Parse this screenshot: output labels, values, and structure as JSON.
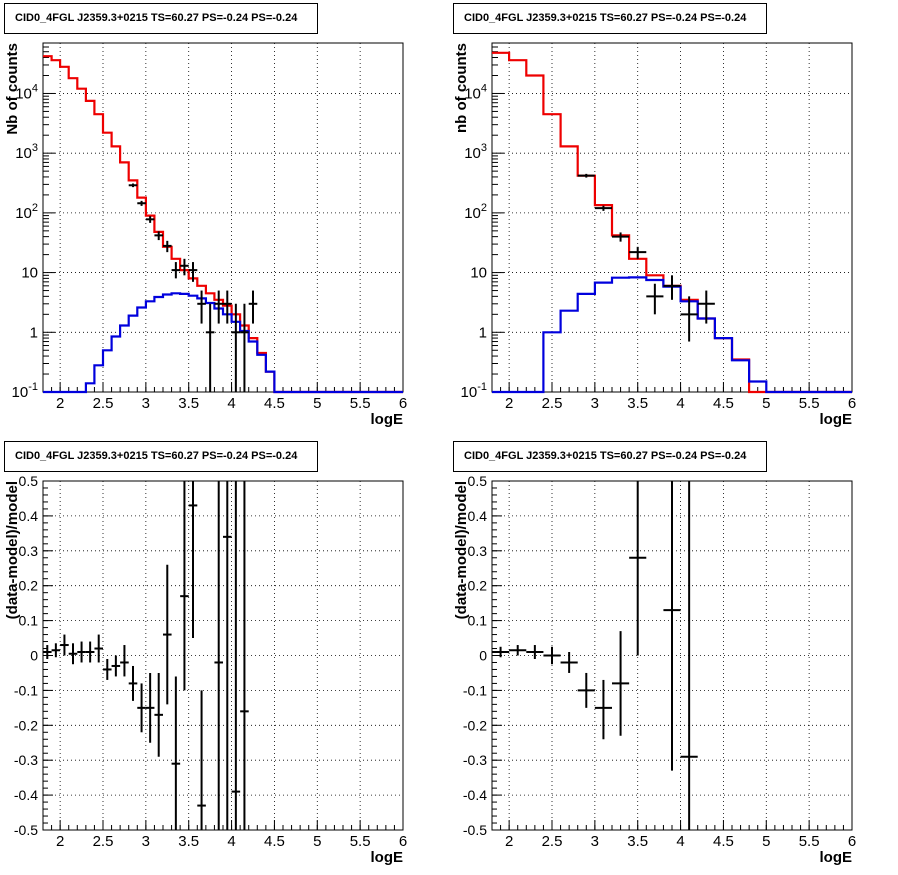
{
  "chart_data": [
    {
      "type": "histogram",
      "title": "CID0_4FGL J2359.3+0215 TS=60.27 PS=-0.24 PS=-0.24",
      "xlabel": "logE",
      "ylabel": "Nb of counts",
      "yscale": "log",
      "xlim": [
        1.8,
        6
      ],
      "ylim": [
        0.1,
        70000
      ],
      "grid": true,
      "x_ticks": [
        "2",
        "2.5",
        "3",
        "3.5",
        "4",
        "4.5",
        "5",
        "5.5",
        "6"
      ],
      "y_ticks": [
        "10^-1",
        "1",
        "10",
        "10^2",
        "10^3",
        "10^4"
      ],
      "bin_edges": [
        1.8,
        1.9,
        2.0,
        2.1,
        2.2,
        2.3,
        2.4,
        2.5,
        2.6,
        2.7,
        2.8,
        2.9,
        3.0,
        3.1,
        3.2,
        3.3,
        3.4,
        3.5,
        3.6,
        3.7,
        3.8,
        3.9,
        4.0,
        4.1,
        4.2,
        4.3,
        4.4,
        4.5,
        4.6,
        4.7,
        4.8,
        4.9,
        5.0,
        5.1,
        5.2,
        5.3,
        5.4,
        5.5,
        5.6,
        5.7,
        5.8,
        5.9,
        6.0
      ],
      "series": [
        {
          "color": "#ee0000",
          "style": "step",
          "values": [
            42000,
            36000,
            28000,
            18000,
            12000,
            7500,
            4500,
            2200,
            1300,
            700,
            350,
            180,
            90,
            48,
            27,
            17,
            11,
            8,
            6,
            4.5,
            3.5,
            2.8,
            2,
            1.3,
            0.8,
            0.45,
            0.22,
            0.1,
            0.1,
            0.1,
            0.1,
            0.1,
            0.1,
            0.1,
            0.1,
            0.1,
            0.1,
            0.1,
            0.1,
            0.1,
            0.1,
            0.1
          ]
        },
        {
          "color": "#0000dd",
          "style": "step",
          "values": [
            0.1,
            0.1,
            0.1,
            0.1,
            0.1,
            0.14,
            0.28,
            0.5,
            0.85,
            1.3,
            1.9,
            2.6,
            3.3,
            3.9,
            4.3,
            4.5,
            4.4,
            4.1,
            3.7,
            3.1,
            2.5,
            2,
            1.5,
            1.05,
            0.7,
            0.42,
            0.22,
            0.1,
            0.1,
            0.1,
            0.1,
            0.1,
            0.1,
            0.1,
            0.1,
            0.1,
            0.1,
            0.1,
            0.1,
            0.1,
            0.1,
            0.1
          ]
        }
      ],
      "data_points": [
        {
          "x": 2.85,
          "y": 290,
          "xerr": 0.05,
          "ylo": 270,
          "yhi": 310
        },
        {
          "x": 2.95,
          "y": 145,
          "xerr": 0.05,
          "ylo": 131,
          "yhi": 159
        },
        {
          "x": 3.05,
          "y": 78,
          "xerr": 0.05,
          "ylo": 68,
          "yhi": 88
        },
        {
          "x": 3.15,
          "y": 42,
          "xerr": 0.05,
          "ylo": 35,
          "yhi": 49
        },
        {
          "x": 3.25,
          "y": 28,
          "xerr": 0.05,
          "ylo": 22,
          "yhi": 34
        },
        {
          "x": 3.35,
          "y": 11,
          "xerr": 0.05,
          "ylo": 8,
          "yhi": 15
        },
        {
          "x": 3.45,
          "y": 13,
          "xerr": 0.05,
          "ylo": 9,
          "yhi": 17
        },
        {
          "x": 3.55,
          "y": 11,
          "xerr": 0.05,
          "ylo": 7,
          "yhi": 15
        },
        {
          "x": 3.65,
          "y": 3,
          "xerr": 0.05,
          "ylo": 1.4,
          "yhi": 5
        },
        {
          "x": 3.75,
          "y": 1,
          "xerr": 0.05,
          "ylo": 0.1,
          "yhi": 3
        },
        {
          "x": 3.85,
          "y": 3,
          "xerr": 0.05,
          "ylo": 1.4,
          "yhi": 5
        },
        {
          "x": 3.95,
          "y": 3,
          "xerr": 0.05,
          "ylo": 1.4,
          "yhi": 5
        },
        {
          "x": 4.05,
          "y": 1,
          "xerr": 0.05,
          "ylo": 0.1,
          "yhi": 3
        },
        {
          "x": 4.15,
          "y": 1,
          "xerr": 0.05,
          "ylo": 0.1,
          "yhi": 3
        },
        {
          "x": 4.25,
          "y": 3,
          "xerr": 0.05,
          "ylo": 1.4,
          "yhi": 5
        }
      ]
    },
    {
      "type": "histogram",
      "title": "CID0_4FGL J2359.3+0215 TS=60.27 PS=-0.24 PS=-0.24",
      "xlabel": "logE",
      "ylabel": "nb of counts",
      "yscale": "log",
      "xlim": [
        1.8,
        6
      ],
      "ylim": [
        0.1,
        70000
      ],
      "grid": true,
      "x_ticks": [
        "2",
        "2.5",
        "3",
        "3.5",
        "4",
        "4.5",
        "5",
        "5.5",
        "6"
      ],
      "y_ticks": [
        "10^-1",
        "1",
        "10",
        "10^2",
        "10^3",
        "10^4"
      ],
      "bin_edges": [
        1.8,
        2.0,
        2.2,
        2.4,
        2.6,
        2.8,
        3.0,
        3.2,
        3.4,
        3.6,
        3.8,
        4.0,
        4.2,
        4.4,
        4.6,
        4.8,
        5.0,
        5.2,
        5.4,
        5.6,
        5.8,
        6.0
      ],
      "series": [
        {
          "color": "#ee0000",
          "style": "step",
          "values": [
            48000,
            36000,
            20000,
            4500,
            1300,
            420,
            135,
            42,
            17,
            9,
            6,
            3.5,
            1.7,
            0.8,
            0.35,
            0.1,
            0.1,
            0.1,
            0.1,
            0.1,
            0.1
          ]
        },
        {
          "color": "#0000dd",
          "style": "step",
          "values": [
            0.1,
            0.1,
            0.1,
            1,
            2.3,
            4.4,
            6.8,
            8.2,
            8.3,
            7.5,
            5.8,
            3.3,
            1.7,
            0.8,
            0.34,
            0.15,
            0.1,
            0.1,
            0.1,
            0.1,
            0.1
          ]
        }
      ],
      "data_points": [
        {
          "x": 2.9,
          "y": 420,
          "xerr": 0.1,
          "ylo": 390,
          "yhi": 450
        },
        {
          "x": 3.1,
          "y": 120,
          "xerr": 0.1,
          "ylo": 108,
          "yhi": 132
        },
        {
          "x": 3.3,
          "y": 40,
          "xerr": 0.1,
          "ylo": 33,
          "yhi": 47
        },
        {
          "x": 3.5,
          "y": 22,
          "xerr": 0.1,
          "ylo": 17,
          "yhi": 27
        },
        {
          "x": 3.7,
          "y": 4,
          "xerr": 0.1,
          "ylo": 2,
          "yhi": 6.5
        },
        {
          "x": 3.9,
          "y": 6,
          "xerr": 0.1,
          "ylo": 3.5,
          "yhi": 9
        },
        {
          "x": 4.1,
          "y": 2,
          "xerr": 0.1,
          "ylo": 0.7,
          "yhi": 4
        },
        {
          "x": 4.3,
          "y": 3,
          "xerr": 0.1,
          "ylo": 1.4,
          "yhi": 5
        }
      ]
    },
    {
      "type": "scatter",
      "title": "CID0_4FGL J2359.3+0215 TS=60.27 PS=-0.24 PS=-0.24",
      "xlabel": "logE",
      "ylabel": "(data-model)/model",
      "yscale": "linear",
      "xlim": [
        1.8,
        6
      ],
      "ylim": [
        -0.5,
        0.5
      ],
      "grid": true,
      "x_ticks": [
        "2",
        "2.5",
        "3",
        "3.5",
        "4",
        "4.5",
        "5",
        "5.5",
        "6"
      ],
      "y_ticks": [
        "-0.5",
        "-0.4",
        "-0.3",
        "-0.2",
        "-0.1",
        "0",
        "0.1",
        "0.2",
        "0.3",
        "0.4",
        "0.5"
      ],
      "data_points": [
        {
          "x": 1.85,
          "y": 0.01,
          "xerr": 0.05,
          "ylo": -0.01,
          "yhi": 0.03
        },
        {
          "x": 1.95,
          "y": 0.015,
          "xerr": 0.05,
          "ylo": -0.005,
          "yhi": 0.035
        },
        {
          "x": 2.05,
          "y": 0.03,
          "xerr": 0.05,
          "ylo": 0.0,
          "yhi": 0.06
        },
        {
          "x": 2.15,
          "y": 0.005,
          "xerr": 0.05,
          "ylo": -0.025,
          "yhi": 0.035
        },
        {
          "x": 2.25,
          "y": 0.01,
          "xerr": 0.05,
          "ylo": -0.02,
          "yhi": 0.04
        },
        {
          "x": 2.35,
          "y": 0.01,
          "xerr": 0.05,
          "ylo": -0.02,
          "yhi": 0.04
        },
        {
          "x": 2.45,
          "y": 0.02,
          "xerr": 0.05,
          "ylo": -0.02,
          "yhi": 0.06
        },
        {
          "x": 2.55,
          "y": -0.04,
          "xerr": 0.05,
          "ylo": -0.07,
          "yhi": -0.01
        },
        {
          "x": 2.65,
          "y": -0.03,
          "xerr": 0.05,
          "ylo": -0.06,
          "yhi": 0.0
        },
        {
          "x": 2.75,
          "y": -0.02,
          "xerr": 0.05,
          "ylo": -0.06,
          "yhi": 0.03
        },
        {
          "x": 2.85,
          "y": -0.08,
          "xerr": 0.05,
          "ylo": -0.13,
          "yhi": -0.03
        },
        {
          "x": 2.95,
          "y": -0.15,
          "xerr": 0.05,
          "ylo": -0.22,
          "yhi": -0.08
        },
        {
          "x": 3.05,
          "y": -0.15,
          "xerr": 0.05,
          "ylo": -0.25,
          "yhi": -0.05
        },
        {
          "x": 3.15,
          "y": -0.17,
          "xerr": 0.05,
          "ylo": -0.29,
          "yhi": -0.05
        },
        {
          "x": 3.25,
          "y": 0.06,
          "xerr": 0.05,
          "ylo": -0.14,
          "yhi": 0.26
        },
        {
          "x": 3.35,
          "y": -0.31,
          "xerr": 0.05,
          "ylo": -0.5,
          "yhi": -0.06
        },
        {
          "x": 3.45,
          "y": 0.17,
          "xerr": 0.05,
          "ylo": -0.1,
          "yhi": 0.5
        },
        {
          "x": 3.55,
          "y": 0.43,
          "xerr": 0.05,
          "ylo": 0.05,
          "yhi": 0.5
        },
        {
          "x": 3.65,
          "y": -0.43,
          "xerr": 0.05,
          "ylo": -0.5,
          "yhi": -0.1
        },
        {
          "x": 3.85,
          "y": -0.02,
          "xerr": 0.05,
          "ylo": -0.5,
          "yhi": 0.5
        },
        {
          "x": 3.95,
          "y": 0.34,
          "xerr": 0.05,
          "ylo": -0.5,
          "yhi": 0.5
        },
        {
          "x": 4.05,
          "y": -0.39,
          "xerr": 0.05,
          "ylo": -0.5,
          "yhi": 0.5
        },
        {
          "x": 4.15,
          "y": -0.16,
          "xerr": 0.05,
          "ylo": -0.5,
          "yhi": 0.5
        }
      ]
    },
    {
      "type": "scatter",
      "title": "CID0_4FGL J2359.3+0215 TS=60.27 PS=-0.24 PS=-0.24",
      "xlabel": "logE",
      "ylabel": "(data-model)/model",
      "yscale": "linear",
      "xlim": [
        1.8,
        6
      ],
      "ylim": [
        -0.5,
        0.5
      ],
      "grid": true,
      "x_ticks": [
        "2",
        "2.5",
        "3",
        "3.5",
        "4",
        "4.5",
        "5",
        "5.5",
        "6"
      ],
      "y_ticks": [
        "-0.5",
        "-0.4",
        "-0.3",
        "-0.2",
        "-0.1",
        "0",
        "0.1",
        "0.2",
        "0.3",
        "0.4",
        "0.5"
      ],
      "data_points": [
        {
          "x": 1.9,
          "y": 0.01,
          "xerr": 0.1,
          "ylo": -0.005,
          "yhi": 0.025
        },
        {
          "x": 2.1,
          "y": 0.015,
          "xerr": 0.1,
          "ylo": 0.0,
          "yhi": 0.03
        },
        {
          "x": 2.3,
          "y": 0.01,
          "xerr": 0.1,
          "ylo": -0.01,
          "yhi": 0.03
        },
        {
          "x": 2.5,
          "y": 0.0,
          "xerr": 0.1,
          "ylo": -0.025,
          "yhi": 0.025
        },
        {
          "x": 2.7,
          "y": -0.02,
          "xerr": 0.1,
          "ylo": -0.05,
          "yhi": 0.01
        },
        {
          "x": 2.9,
          "y": -0.1,
          "xerr": 0.1,
          "ylo": -0.15,
          "yhi": -0.05
        },
        {
          "x": 3.1,
          "y": -0.15,
          "xerr": 0.1,
          "ylo": -0.24,
          "yhi": -0.07
        },
        {
          "x": 3.3,
          "y": -0.08,
          "xerr": 0.1,
          "ylo": -0.23,
          "yhi": 0.07
        },
        {
          "x": 3.5,
          "y": 0.28,
          "xerr": 0.1,
          "ylo": 0.0,
          "yhi": 0.5
        },
        {
          "x": 3.9,
          "y": 0.13,
          "xerr": 0.1,
          "ylo": -0.33,
          "yhi": 0.5
        },
        {
          "x": 4.1,
          "y": -0.29,
          "xerr": 0.1,
          "ylo": -0.5,
          "yhi": 0.5
        }
      ]
    }
  ]
}
